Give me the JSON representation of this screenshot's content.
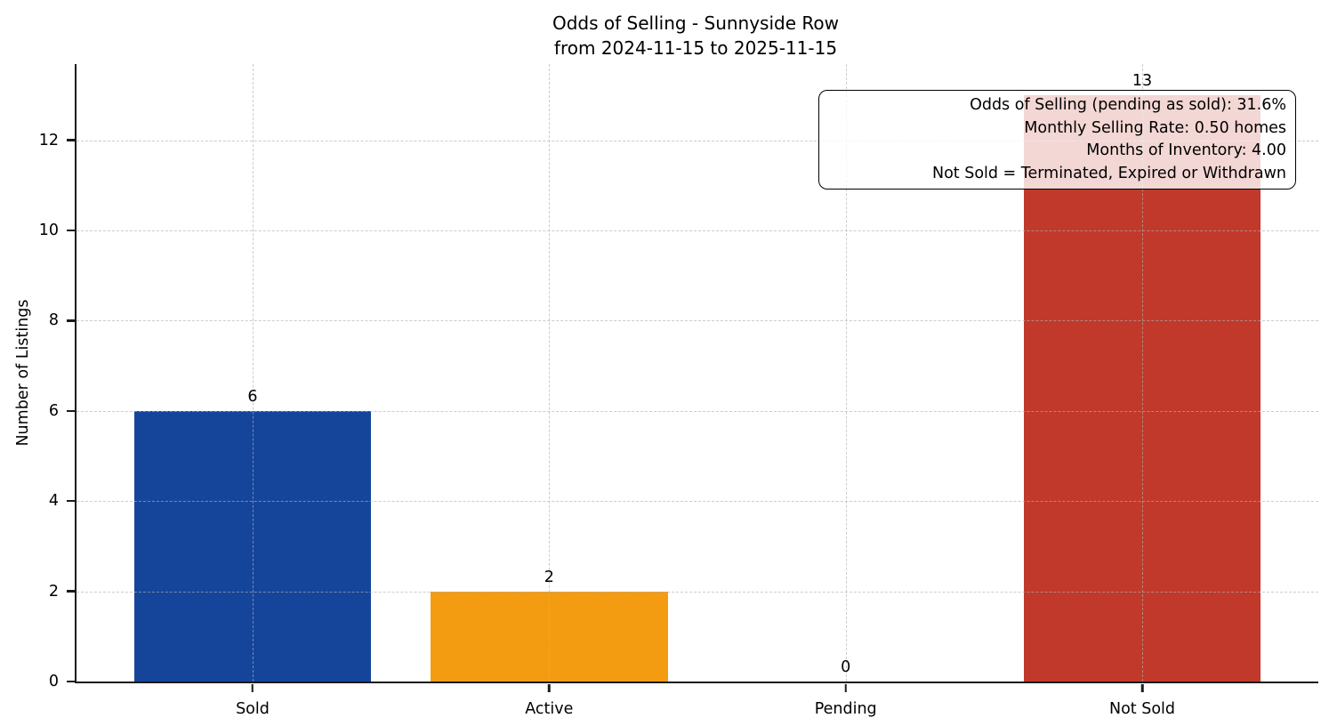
{
  "title": {
    "line1": "Odds of Selling - Sunnyside Row",
    "line2": "from 2024-11-15 to 2025-11-15"
  },
  "chart_data": {
    "type": "bar",
    "title": "Odds of Selling - Sunnyside Row",
    "subtitle": "from 2024-11-15 to 2025-11-15",
    "categories": [
      "Sold",
      "Active",
      "Pending",
      "Not Sold"
    ],
    "values": [
      6,
      2,
      0,
      13
    ],
    "value_labels": [
      "6",
      "2",
      "0",
      "13"
    ],
    "bar_colors": [
      "#15459b",
      "#f39c12",
      "#808080",
      "#c0392b"
    ],
    "xlabel": "",
    "ylabel": "Number of Listings",
    "ylim": [
      0,
      13.69
    ],
    "yticks": [
      0,
      2,
      4,
      6,
      8,
      10,
      12
    ],
    "grid": true,
    "grid_style": "dashed",
    "legend": "none"
  },
  "annotation": {
    "lines": [
      "Odds of Selling (pending as sold): 31.6%",
      "Monthly Selling Rate: 0.50 homes",
      "Months of Inventory: 4.00",
      "Not Sold = Terminated, Expired or Withdrawn"
    ]
  },
  "colors": {
    "axis": "#1a1a1a",
    "grid": "#b0b0b0",
    "text": "#000000",
    "annotation_bg": "rgba(255,255,255,0.8)"
  }
}
